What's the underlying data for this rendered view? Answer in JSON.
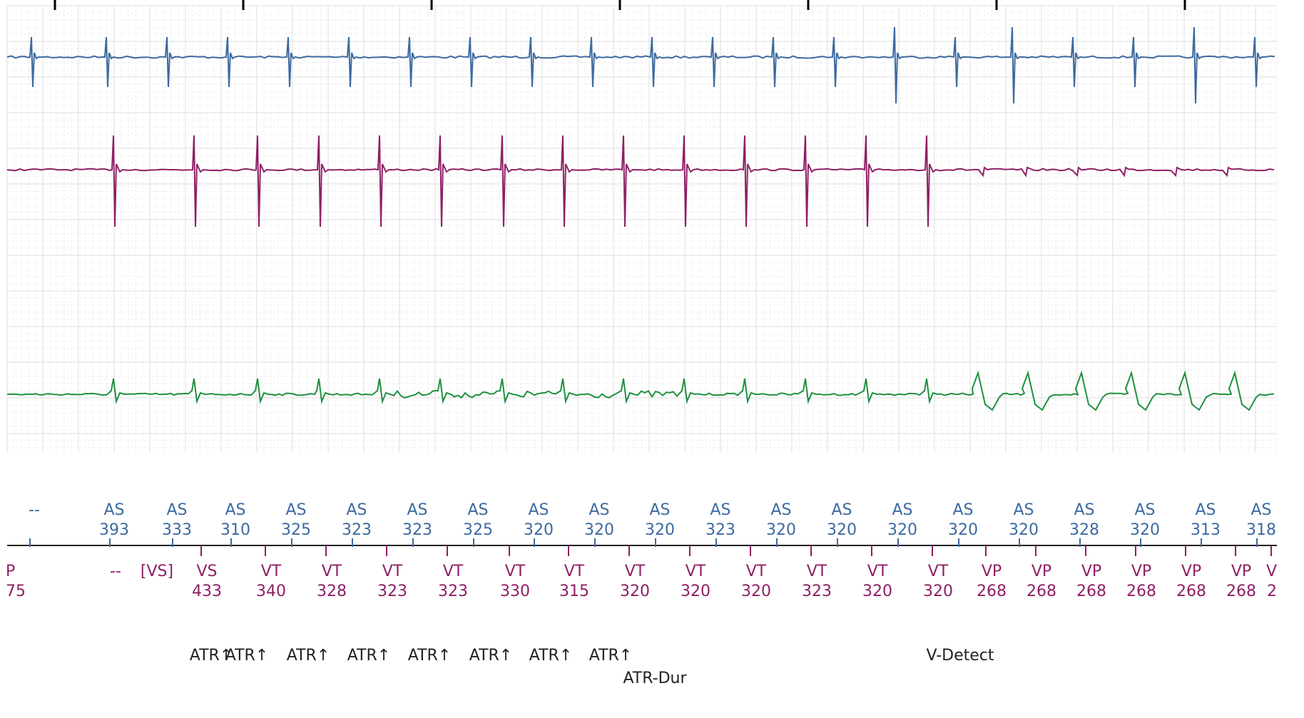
{
  "colors": {
    "atrial": "#3c6aa0",
    "ventricular": "#8f1f66",
    "surface": "#1f9040",
    "grid_major": "#dddddd",
    "grid_minor": "#ececec",
    "text_dark": "#222222"
  },
  "channels": [
    {
      "name": "atrial-egm",
      "color": "#3c6aa0",
      "beats": [
        45,
        150,
        235,
        320,
        405,
        490,
        575,
        660,
        745,
        830,
        915,
        1000,
        1085,
        1170,
        1255,
        1340,
        1420,
        1505,
        1590,
        1675,
        1760
      ]
    },
    {
      "name": "ventricular-egm",
      "color": "#8f1f66",
      "beats": [
        160,
        273,
        362,
        448,
        533,
        618,
        705,
        790,
        875,
        960,
        1045,
        1130,
        1215,
        1300
      ]
    },
    {
      "name": "surface-ecg",
      "color": "#1f9040"
    }
  ],
  "atrial_markers": [
    {
      "label": "--",
      "value": ""
    },
    {
      "label": "AS",
      "value": "393"
    },
    {
      "label": "AS",
      "value": "333"
    },
    {
      "label": "AS",
      "value": "310"
    },
    {
      "label": "AS",
      "value": "325"
    },
    {
      "label": "AS",
      "value": "323"
    },
    {
      "label": "AS",
      "value": "323"
    },
    {
      "label": "AS",
      "value": "325"
    },
    {
      "label": "AS",
      "value": "320"
    },
    {
      "label": "AS",
      "value": "320"
    },
    {
      "label": "AS",
      "value": "320"
    },
    {
      "label": "AS",
      "value": "323"
    },
    {
      "label": "AS",
      "value": "320"
    },
    {
      "label": "AS",
      "value": "320"
    },
    {
      "label": "AS",
      "value": "320"
    },
    {
      "label": "AS",
      "value": "320"
    },
    {
      "label": "AS",
      "value": "320"
    },
    {
      "label": "AS",
      "value": "328"
    },
    {
      "label": "AS",
      "value": "320"
    },
    {
      "label": "AS",
      "value": "313"
    },
    {
      "label": "AS",
      "value": "318"
    }
  ],
  "ventricular_markers": [
    {
      "label": "P",
      "value": "75"
    },
    {
      "label": "--",
      "value": ""
    },
    {
      "label": "[VS]",
      "value": ""
    },
    {
      "label": "VS",
      "value": "433"
    },
    {
      "label": "VT",
      "value": "340"
    },
    {
      "label": "VT",
      "value": "328"
    },
    {
      "label": "VT",
      "value": "323"
    },
    {
      "label": "VT",
      "value": "323"
    },
    {
      "label": "VT",
      "value": "330"
    },
    {
      "label": "VT",
      "value": "315"
    },
    {
      "label": "VT",
      "value": "320"
    },
    {
      "label": "VT",
      "value": "320"
    },
    {
      "label": "VT",
      "value": "320"
    },
    {
      "label": "VT",
      "value": "323"
    },
    {
      "label": "VT",
      "value": "320"
    },
    {
      "label": "VT",
      "value": "320"
    },
    {
      "label": "VP",
      "value": "268"
    },
    {
      "label": "VP",
      "value": "268"
    },
    {
      "label": "VP",
      "value": "268"
    },
    {
      "label": "VP",
      "value": "268"
    },
    {
      "label": "VP",
      "value": "268"
    },
    {
      "label": "VP",
      "value": "268"
    },
    {
      "label": "V",
      "value": "2"
    }
  ],
  "event_annotations": [
    {
      "text": "ATR↑"
    },
    {
      "text": "ATR↑"
    },
    {
      "text": "ATR↑"
    },
    {
      "text": "ATR↑"
    },
    {
      "text": "ATR↑"
    },
    {
      "text": "ATR↑"
    },
    {
      "text": "ATR↑"
    },
    {
      "text": "ATR↑"
    },
    {
      "text": "V-Detect"
    },
    {
      "text": "ATR-Dur"
    }
  ]
}
